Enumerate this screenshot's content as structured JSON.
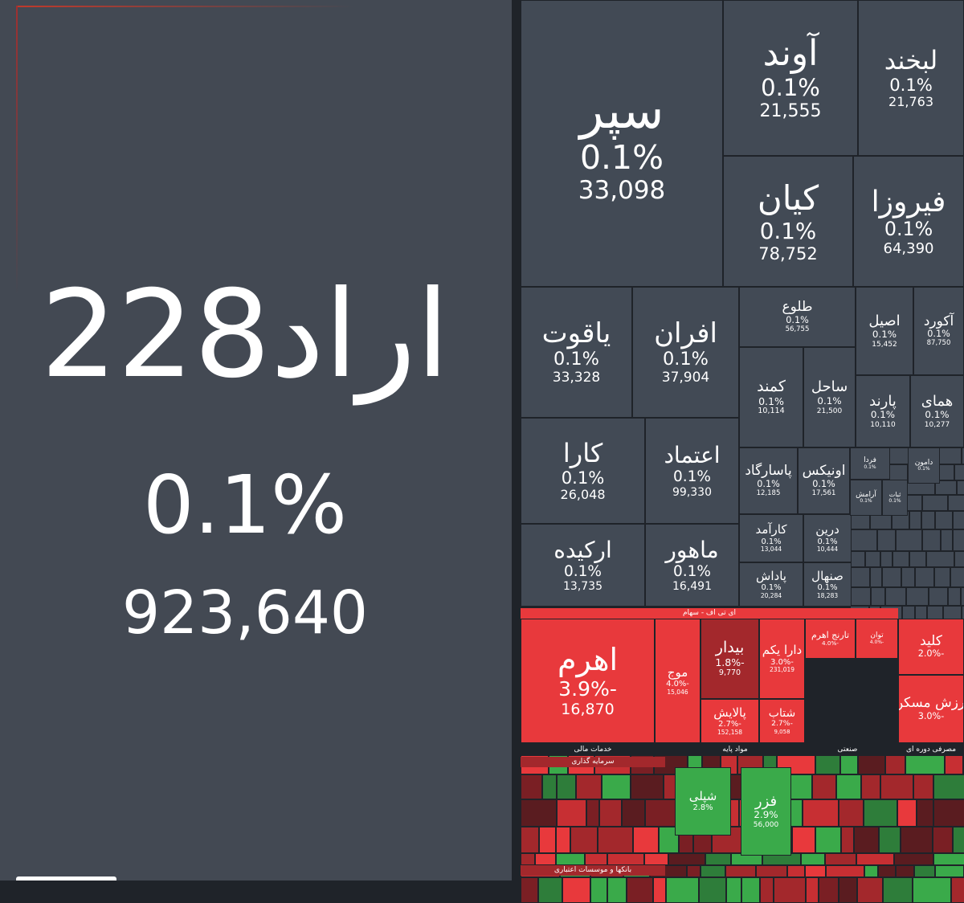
{
  "left": {
    "symbol": "اراد228",
    "change": "0.1%",
    "value": "923,640"
  },
  "tiles": [
    {
      "name": "سپر",
      "change": "0.1%",
      "value": "33,098"
    },
    {
      "name": "آوند",
      "change": "0.1%",
      "value": "21,555"
    },
    {
      "name": "لبخند",
      "change": "0.1%",
      "value": "21,763"
    },
    {
      "name": "کیان",
      "change": "0.1%",
      "value": "78,752"
    },
    {
      "name": "فیروزا",
      "change": "0.1%",
      "value": "64,390"
    },
    {
      "name": "یاقوت",
      "change": "0.1%",
      "value": "33,328"
    },
    {
      "name": "افران",
      "change": "0.1%",
      "value": "37,904"
    },
    {
      "name": "طلوع",
      "change": "0.1%",
      "value": "56,755"
    },
    {
      "name": "اصیل",
      "change": "0.1%",
      "value": "15,452"
    },
    {
      "name": "آکورد",
      "change": "0.1%",
      "value": "87,750"
    },
    {
      "name": "کمند",
      "change": "0.1%",
      "value": "10,114"
    },
    {
      "name": "ساحل",
      "change": "0.1%",
      "value": "21,500"
    },
    {
      "name": "پارند",
      "change": "0.1%",
      "value": "10,110"
    },
    {
      "name": "همای",
      "change": "0.1%",
      "value": "10,277"
    },
    {
      "name": "کارا",
      "change": "0.1%",
      "value": "26,048"
    },
    {
      "name": "اعتماد",
      "change": "0.1%",
      "value": "99,330"
    },
    {
      "name": "ارکیده",
      "change": "0.1%",
      "value": "13,735"
    },
    {
      "name": "ماهور",
      "change": "0.1%",
      "value": "16,491"
    },
    {
      "name": "پاسارگاد",
      "change": "0.1%",
      "value": "12,185"
    },
    {
      "name": "اونیکس",
      "change": "0.1%",
      "value": "17,561"
    },
    {
      "name": "کارآمد",
      "change": "0.1%",
      "value": "13,044"
    },
    {
      "name": "درین",
      "change": "0.1%",
      "value": "10,444"
    },
    {
      "name": "پاداش",
      "change": "0.1%",
      "value": "20,284"
    },
    {
      "name": "صنهال",
      "change": "0.1%",
      "value": "18,283"
    },
    {
      "name": "فردا",
      "change": "0.1%"
    },
    {
      "name": "دامون",
      "change": "0.1%"
    },
    {
      "name": "آرامش",
      "change": "0.1%"
    },
    {
      "name": "ثبات",
      "change": "0.1%"
    },
    {
      "name": "اهرم",
      "change": "-3.9%",
      "value": "16,870"
    },
    {
      "name": "موج",
      "change": "-4.0%",
      "value": "15,046"
    },
    {
      "name": "بیدار",
      "change": "-1.8%",
      "value": "9,770"
    },
    {
      "name": "دارا یکم",
      "change": "-3.0%",
      "value": "231,019"
    },
    {
      "name": "تارنج اهرم",
      "change": "-4.0%"
    },
    {
      "name": "توان",
      "change": "-4.0%"
    },
    {
      "name": "پالایش",
      "change": "-2.7%",
      "value": "152,158"
    },
    {
      "name": "شتاب",
      "change": "-2.7%",
      "value": "9,058"
    },
    {
      "name": "کلید",
      "change": "-2.0%"
    },
    {
      "name": "ارزش مسکن",
      "change": "-3.0%"
    },
    {
      "name": "شپلی",
      "change": "2.8%"
    },
    {
      "name": "فزر",
      "change": "2.9%",
      "value": "56,000"
    }
  ],
  "headers": [
    "ای تی اف - سهام",
    "خدمات مالی",
    "مواد پایه",
    "صنعتی",
    "مصرفی دوره ای",
    "سرمایه گذاری",
    "بانکها و موسسات اعتباری"
  ]
}
